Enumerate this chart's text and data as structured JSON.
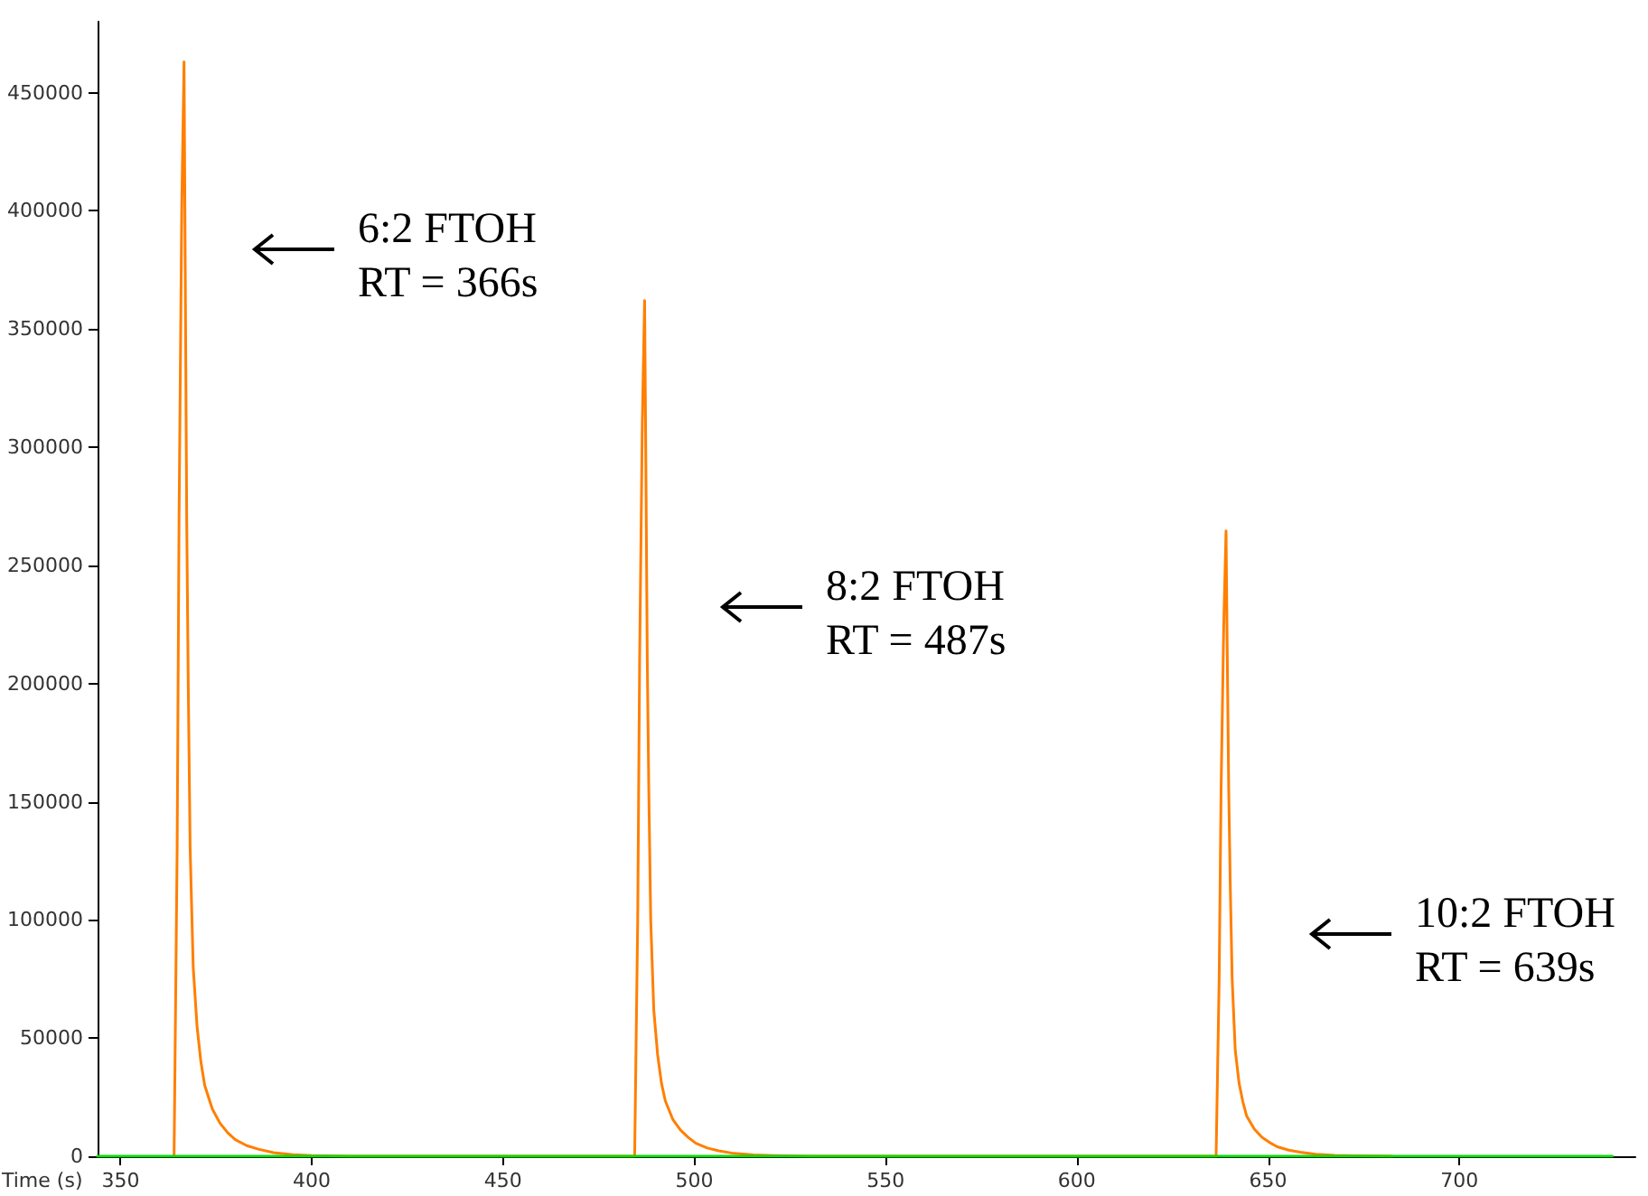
{
  "chart_data": {
    "type": "line",
    "xlabel": "Time (s)",
    "xlim": [
      344,
      746
    ],
    "xticks": [
      350,
      400,
      450,
      500,
      550,
      600,
      650,
      700
    ],
    "ylim": [
      0,
      480000
    ],
    "yticks": [
      0,
      50000,
      100000,
      150000,
      200000,
      250000,
      300000,
      350000,
      400000,
      450000
    ],
    "grid": false,
    "series": [
      {
        "color": "#ff7f00",
        "x": [
          364,
          364.8,
          365.3,
          366,
          366.6,
          366.9,
          367.3,
          367.7,
          368.2,
          369,
          370,
          371,
          372,
          374,
          376,
          378,
          380,
          383,
          386,
          390,
          395,
          400,
          410,
          484.4,
          485.2,
          485.7,
          486.4,
          487,
          487.3,
          487.7,
          488.1,
          488.6,
          489.4,
          490.4,
          491.4,
          492.4,
          494.4,
          496.4,
          498.4,
          500.4,
          503.4,
          506.4,
          510.4,
          515.4,
          520.4,
          530.4,
          636.4,
          637.2,
          637.7,
          638.4,
          639,
          639.3,
          639.7,
          640.1,
          640.6,
          641.4,
          642.4,
          643.4,
          644.4,
          646.4,
          648.4,
          650.4,
          652.4,
          655.4,
          658.4,
          662.4,
          667.4,
          672.4,
          682.4
        ],
        "values": [
          0,
          130000,
          270000,
          400000,
          463000,
          380000,
          270000,
          200000,
          130000,
          80000,
          55000,
          40000,
          30000,
          20000,
          14000,
          10000,
          7000,
          4500,
          3000,
          1500,
          700,
          300,
          0,
          0,
          100000,
          210000,
          310000,
          362000,
          300000,
          210000,
          155000,
          100000,
          62000,
          43000,
          31000,
          23500,
          15500,
          11000,
          8000,
          5500,
          3500,
          2300,
          1200,
          600,
          300,
          0,
          0,
          75000,
          155000,
          225000,
          264600,
          215000,
          155000,
          115000,
          75000,
          45000,
          31000,
          23000,
          17000,
          11500,
          8000,
          5800,
          4000,
          2600,
          1700,
          900,
          400,
          200,
          0
        ]
      },
      {
        "color": "#00e000",
        "x": [
          344,
          740
        ],
        "values": [
          0,
          0
        ]
      }
    ],
    "annotations": [
      "6:2 FTOH\nRT = 366s",
      "8:2 FTOH\nRT = 487s",
      "10:2 FTOH\nRT = 639s"
    ]
  }
}
